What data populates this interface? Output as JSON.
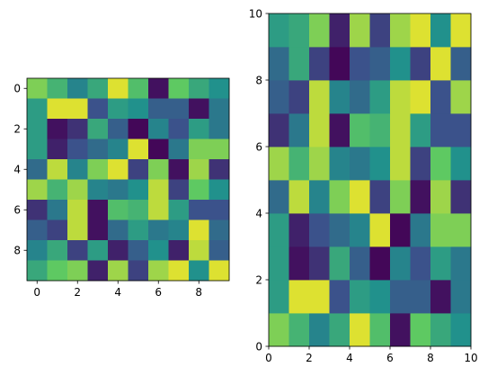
{
  "colormap": "viridis",
  "colormap_stops": [
    "#440154",
    "#3b528b",
    "#21918c",
    "#5ec962",
    "#fde725"
  ],
  "chart_data": [
    {
      "type": "heatmap",
      "title": "",
      "xlabel": "",
      "ylabel": "",
      "xlim": [
        -0.5,
        9.5
      ],
      "ylim": [
        9.5,
        -0.5
      ],
      "origin": "upper",
      "xticks": [
        "0",
        "2",
        "4",
        "6",
        "8"
      ],
      "yticks": [
        "0",
        "2",
        "4",
        "6",
        "8"
      ],
      "grid": false,
      "values": [
        [
          0.8,
          0.65,
          0.45,
          0.6,
          0.95,
          0.7,
          0.05,
          0.75,
          0.6,
          0.5
        ],
        [
          0.55,
          0.95,
          0.95,
          0.25,
          0.55,
          0.5,
          0.3,
          0.3,
          0.05,
          0.4
        ],
        [
          0.55,
          0.05,
          0.15,
          0.6,
          0.3,
          0.02,
          0.45,
          0.25,
          0.55,
          0.4
        ],
        [
          0.55,
          0.1,
          0.25,
          0.35,
          0.45,
          0.95,
          0.02,
          0.4,
          0.8,
          0.8
        ],
        [
          0.35,
          0.9,
          0.45,
          0.8,
          0.95,
          0.2,
          0.8,
          0.05,
          0.85,
          0.15
        ],
        [
          0.85,
          0.65,
          0.85,
          0.45,
          0.4,
          0.5,
          0.9,
          0.2,
          0.75,
          0.5
        ],
        [
          0.15,
          0.4,
          0.9,
          0.05,
          0.7,
          0.65,
          0.9,
          0.55,
          0.25,
          0.25
        ],
        [
          0.3,
          0.2,
          0.9,
          0.05,
          0.35,
          0.55,
          0.4,
          0.45,
          0.95,
          0.35
        ],
        [
          0.45,
          0.6,
          0.2,
          0.55,
          0.1,
          0.3,
          0.5,
          0.1,
          0.9,
          0.3
        ],
        [
          0.6,
          0.75,
          0.8,
          0.1,
          0.85,
          0.2,
          0.85,
          0.95,
          0.5,
          0.95
        ]
      ]
    },
    {
      "type": "heatmap",
      "title": "",
      "xlabel": "",
      "ylabel": "",
      "xlim": [
        0,
        10
      ],
      "ylim": [
        0,
        10
      ],
      "origin": "lower",
      "xticks": [
        "0",
        "2",
        "4",
        "6",
        "8",
        "10"
      ],
      "yticks": [
        "0",
        "2",
        "4",
        "6",
        "8",
        "10"
      ],
      "grid": false,
      "values": [
        [
          0.8,
          0.65,
          0.45,
          0.6,
          0.95,
          0.7,
          0.05,
          0.75,
          0.6,
          0.5
        ],
        [
          0.55,
          0.95,
          0.95,
          0.25,
          0.55,
          0.5,
          0.3,
          0.3,
          0.05,
          0.4
        ],
        [
          0.55,
          0.05,
          0.15,
          0.6,
          0.3,
          0.02,
          0.45,
          0.25,
          0.55,
          0.4
        ],
        [
          0.55,
          0.1,
          0.25,
          0.35,
          0.45,
          0.95,
          0.02,
          0.4,
          0.8,
          0.8
        ],
        [
          0.35,
          0.9,
          0.45,
          0.8,
          0.95,
          0.2,
          0.8,
          0.05,
          0.85,
          0.15
        ],
        [
          0.85,
          0.65,
          0.85,
          0.45,
          0.4,
          0.5,
          0.9,
          0.2,
          0.75,
          0.5
        ],
        [
          0.15,
          0.4,
          0.9,
          0.05,
          0.7,
          0.65,
          0.9,
          0.55,
          0.25,
          0.25
        ],
        [
          0.3,
          0.2,
          0.9,
          0.45,
          0.35,
          0.55,
          0.9,
          0.95,
          0.25,
          0.85
        ],
        [
          0.35,
          0.6,
          0.2,
          0.02,
          0.25,
          0.3,
          0.5,
          0.2,
          0.95,
          0.3
        ],
        [
          0.55,
          0.6,
          0.8,
          0.1,
          0.85,
          0.2,
          0.85,
          0.95,
          0.5,
          0.95
        ]
      ]
    }
  ]
}
